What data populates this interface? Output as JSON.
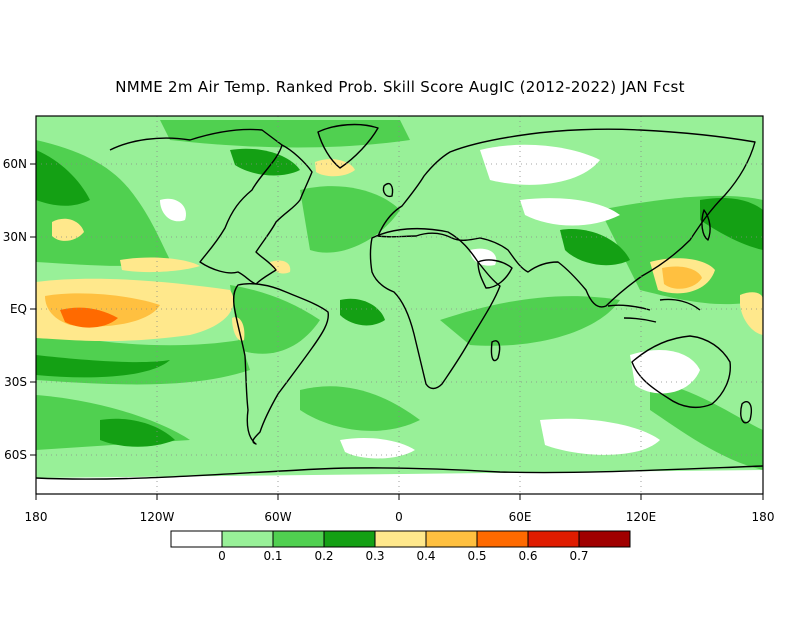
{
  "title": "NMME 2m Air Temp. Ranked Prob. Skill Score AugIC (2012-2022) JAN Fcst",
  "map": {
    "lon_ticks": [
      "180",
      "120W",
      "60W",
      "0",
      "60E",
      "120E",
      "180"
    ],
    "lat_ticks": [
      "60N",
      "30N",
      "EQ",
      "30S",
      "60S"
    ]
  },
  "colorbar": {
    "boundaries": [
      "0",
      "0.1",
      "0.2",
      "0.3",
      "0.4",
      "0.5",
      "0.6",
      "0.7"
    ],
    "colors": [
      "#ffffff",
      "#98f098",
      "#50d050",
      "#14a014",
      "#ffe88c",
      "#ffc040",
      "#ff6a00",
      "#e01c00",
      "#a00000"
    ]
  }
}
